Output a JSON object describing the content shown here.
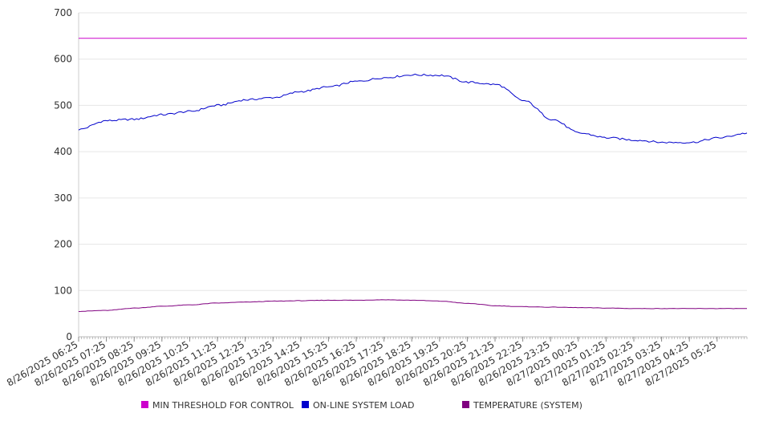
{
  "chart_data": {
    "type": "line",
    "title": "",
    "xlabel": "",
    "ylabel": "",
    "ylim": [
      0,
      700
    ],
    "yticks": [
      0,
      100,
      200,
      300,
      400,
      500,
      600,
      700
    ],
    "grid": true,
    "legend_position": "bottom",
    "x_tick_labels": [
      "8/26/2025 06:25",
      "8/26/2025 07:25",
      "8/26/2025 08:25",
      "8/26/2025 09:25",
      "8/26/2025 10:25",
      "8/26/2025 11:25",
      "8/26/2025 12:25",
      "8/26/2025 13:25",
      "8/26/2025 14:25",
      "8/26/2025 15:25",
      "8/26/2025 16:25",
      "8/26/2025 17:25",
      "8/26/2025 18:25",
      "8/26/2025 19:25",
      "8/26/2025 20:25",
      "8/26/2025 21:25",
      "8/26/2025 22:25",
      "8/26/2025 23:25",
      "8/27/2025 00:25",
      "8/27/2025 01:25",
      "8/27/2025 02:25",
      "8/27/2025 03:25",
      "8/27/2025 04:25",
      "8/27/2025 05:25"
    ],
    "series": [
      {
        "name": "MIN THRESHOLD FOR CONTROL",
        "color": "#cc00cc",
        "values": [
          645,
          645,
          645,
          645,
          645,
          645,
          645,
          645,
          645,
          645,
          645,
          645,
          645,
          645,
          645,
          645,
          645,
          645,
          645,
          645,
          645,
          645,
          645,
          645,
          645
        ]
      },
      {
        "name": "ON-LINE SYSTEM LOAD",
        "color": "#0000cc",
        "values": [
          448,
          467,
          470,
          480,
          487,
          500,
          512,
          517,
          530,
          540,
          552,
          560,
          566,
          565,
          550,
          545,
          510,
          470,
          440,
          430,
          425,
          420,
          420,
          430,
          440
        ]
      },
      {
        "name": "TEMPERATURE (SYSTEM)",
        "color": "#800080",
        "values": [
          55,
          57,
          62,
          66,
          69,
          73,
          75,
          77,
          78,
          79,
          79,
          80,
          79,
          77,
          72,
          67,
          65,
          64,
          63,
          62,
          61,
          61,
          61,
          61,
          61
        ]
      }
    ]
  }
}
